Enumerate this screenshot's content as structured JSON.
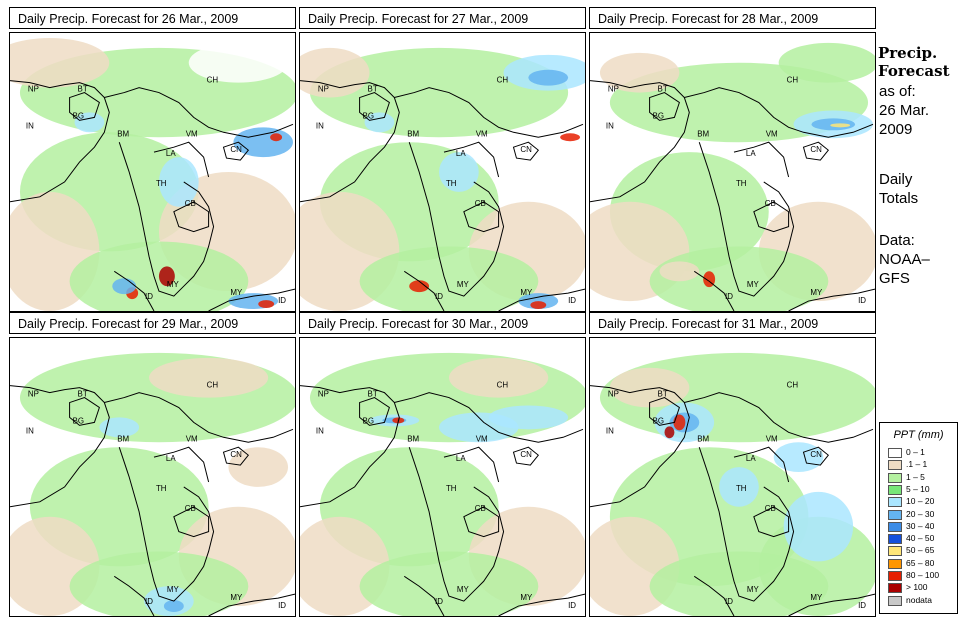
{
  "panels": [
    {
      "title": "Daily Precip. Forecast for  26 Mar., 2009"
    },
    {
      "title": "Daily Precip. Forecast for  27 Mar., 2009"
    },
    {
      "title": "Daily Precip. Forecast for  28 Mar., 2009"
    },
    {
      "title": "Daily Precip. Forecast for  29 Mar., 2009"
    },
    {
      "title": "Daily Precip. Forecast for  30 Mar., 2009"
    },
    {
      "title": "Daily Precip. Forecast for  31 Mar., 2009"
    }
  ],
  "country_labels": [
    "NP",
    "BT",
    "BG",
    "IN",
    "BM",
    "CH",
    "VM",
    "CN",
    "LA",
    "TH",
    "CB",
    "MY",
    "ID",
    "MY",
    "ID"
  ],
  "side": {
    "title_line1": "Precip.",
    "title_line2": "Forecast",
    "asof_line1": "as of:",
    "asof_line2": "26 Mar.",
    "asof_line3": "2009",
    "daily_line1": "Daily",
    "daily_line2": "Totals",
    "data_line1": "Data:",
    "data_line2": "NOAA–",
    "data_line3": "GFS"
  },
  "legend": {
    "title": "PPT (mm)",
    "classes": [
      {
        "label": "0 – 1",
        "color": "#ffffff"
      },
      {
        "label": ".1 – 1",
        "color": "#eedcc4"
      },
      {
        "label": "1 – 5",
        "color": "#b4f0a0"
      },
      {
        "label": "5 – 10",
        "color": "#78e678"
      },
      {
        "label": "10 – 20",
        "color": "#aae6ff"
      },
      {
        "label": "20 – 30",
        "color": "#64b4f0"
      },
      {
        "label": "30 – 40",
        "color": "#3c8ce6"
      },
      {
        "label": "40 – 50",
        "color": "#1450dc"
      },
      {
        "label": "50 – 65",
        "color": "#ffe678"
      },
      {
        "label": "65 – 80",
        "color": "#ff9600"
      },
      {
        "label": "80 – 100",
        "color": "#e61e00"
      },
      {
        "label": "> 100",
        "color": "#aa0000"
      },
      {
        "label": "nodata",
        "color": "#c8c8c8"
      }
    ]
  }
}
